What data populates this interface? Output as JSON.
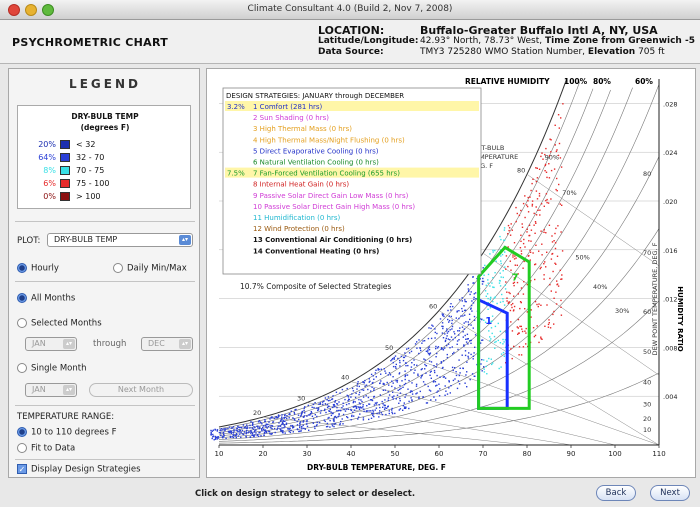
{
  "window": {
    "title": "Climate Consultant 4.0 (Build 2, Nov 7, 2008)"
  },
  "header": {
    "app_title": "PSYCHROMETRIC CHART",
    "location_label": "LOCATION:",
    "location_value": "Buffalo-Greater Buffalo Intl A, NY, USA",
    "latlon_label": "Latitude/Longitude:",
    "latlon_value_a": "42.93° North, 78.73° West,",
    "latlon_value_b": "Time Zone from Greenwich -5",
    "source_label": "Data Source:",
    "source_value_a": "TMY3    725280 WMO Station Number,",
    "source_value_b": "Elevation",
    "source_value_c": "705 ft"
  },
  "legend": {
    "title": "LEGEND",
    "heading1": "DRY-BULB TEMP",
    "heading2": "(degrees F)",
    "rows": [
      {
        "pct": "20%",
        "label": "< 32",
        "color": "#1c2fb0"
      },
      {
        "pct": "64%",
        "label": "32  -  70",
        "color": "#2a3fd6"
      },
      {
        "pct": "8%",
        "label": "70  -  75",
        "color": "#39e0e6"
      },
      {
        "pct": "6%",
        "label": "75  -  100",
        "color": "#e62a2a"
      },
      {
        "pct": "0%",
        "label": "> 100",
        "color": "#8b1010"
      }
    ]
  },
  "controls": {
    "plot_label": "PLOT:",
    "plot_value": "DRY-BULB TEMP",
    "hourly": "Hourly",
    "daily": "Daily Min/Max",
    "all_months": "All Months",
    "selected_months": "Selected Months",
    "month_from": "JAN",
    "through": "through",
    "month_to": "DEC",
    "single_month": "Single Month",
    "single_value": "JAN",
    "next_month": "Next Month",
    "temp_range_label": "TEMPERATURE RANGE:",
    "range_a": "10 to 110 degrees F",
    "range_b": "Fit to Data",
    "display_strategies": "Display Design Strategies"
  },
  "chart_labels": {
    "strategies_title": "DESIGN STRATEGIES:  JANUARY through DECEMBER",
    "rh_label": "RELATIVE HUMIDITY",
    "rh100": "100%",
    "rh80": "80%",
    "rh60": "60%",
    "composite": "10.7% Composite of Selected Strategies",
    "wetbulb1": "WET-BULB",
    "wetbulb2": "TEMPERATURE",
    "wetbulb3": "DEG. F",
    "xlabel": "DRY-BULB TEMPERATURE, DEG. F",
    "dewlabel": "DEW POINT TEMPERATURE, DEG. F",
    "ylabel": "HUMIDITY RATIO",
    "zone1": "1",
    "zone7": "7",
    "rh_curve_labels": [
      "90%",
      "70%",
      "50%",
      "40%",
      "30%"
    ]
  },
  "strategies": [
    {
      "pct": "3.2%",
      "text": "1 Comfort (281 hrs)",
      "color": "#2231c8",
      "highlight": true
    },
    {
      "pct": "",
      "text": "2 Sun Shading (0 hrs)",
      "color": "#d03cd6",
      "highlight": false
    },
    {
      "pct": "",
      "text": "3 High Thermal Mass (0 hrs)",
      "color": "#e4a020",
      "highlight": false
    },
    {
      "pct": "",
      "text": "4 High Thermal Mass/Night Flushing (0 hrs)",
      "color": "#e4a020",
      "highlight": false
    },
    {
      "pct": "",
      "text": "5 Direct Evaporative Cooling (0 hrs)",
      "color": "#2231c8",
      "highlight": false
    },
    {
      "pct": "",
      "text": "6 Natural Ventilation Cooling (0 hrs)",
      "color": "#1a8a2a",
      "highlight": false
    },
    {
      "pct": "7.5%",
      "text": "7 Fan-Forced Ventilation Cooling (655 hrs)",
      "color": "#1a9a2a",
      "highlight": true
    },
    {
      "pct": "",
      "text": "8 Internal Heat Gain (0 hrs)",
      "color": "#d02020",
      "highlight": false
    },
    {
      "pct": "",
      "text": "9 Passive Solar Direct Gain Low Mass (0 hrs)",
      "color": "#d03cd6",
      "highlight": false
    },
    {
      "pct": "",
      "text": "10 Passive Solar Direct Gain High Mass (0 hrs)",
      "color": "#d03cd6",
      "highlight": false
    },
    {
      "pct": "",
      "text": "11 Humidification (0 hrs)",
      "color": "#20b8d0",
      "highlight": false
    },
    {
      "pct": "",
      "text": "12 Wind Protection (0 hrs)",
      "color": "#9a5a10",
      "highlight": false
    },
    {
      "pct": "",
      "text": "13 Conventional Air Conditioning (0 hrs)",
      "color": "#111111",
      "highlight": false
    },
    {
      "pct": "",
      "text": "14 Conventional Heating (0 hrs)",
      "color": "#111111",
      "highlight": false
    }
  ],
  "chart_data": {
    "type": "scatter",
    "title": "PSYCHROMETRIC CHART",
    "xlabel": "DRY-BULB TEMPERATURE, DEG. F",
    "ylabel": "HUMIDITY RATIO",
    "xlim": [
      10,
      110
    ],
    "ylim": [
      0,
      0.03
    ],
    "x_ticks": [
      "10",
      "20",
      "30",
      "40",
      "50",
      "60",
      "70",
      "80",
      "90",
      "100",
      "110"
    ],
    "y_ticks": [
      ".028",
      ".024",
      ".020",
      ".016",
      ".012",
      ".008",
      ".004"
    ],
    "dewpoint_ticks": [
      "80",
      "70",
      "60",
      "50",
      "40",
      "30",
      "20",
      "10"
    ],
    "wetbulb_curve_labels": [
      "20",
      "30",
      "40",
      "50",
      "60",
      "70",
      "80"
    ],
    "rh_curves_percent": [
      100,
      90,
      80,
      70,
      60,
      50,
      40,
      30,
      20,
      10
    ],
    "series": [
      {
        "name": "70  -  75",
        "color": "#39e0e6"
      },
      {
        "name": "75  -  100",
        "color": "#e62a2a"
      },
      {
        "name": "32  -  70",
        "color": "#2a3fd6"
      }
    ],
    "zones": [
      {
        "name": "1 Comfort (281 hrs)",
        "color": "#1830ff",
        "polygon_db_w": [
          [
            69,
            0.003
          ],
          [
            75.5,
            0.003
          ],
          [
            75.5,
            0.0108
          ],
          [
            69,
            0.0119
          ]
        ]
      },
      {
        "name": "7 Fan-Forced Ventilation Cooling (655 hrs)",
        "color": "#22cc22",
        "polygon_db_w": [
          [
            69,
            0.003
          ],
          [
            80.5,
            0.003
          ],
          [
            80.5,
            0.015
          ],
          [
            75,
            0.0162
          ],
          [
            69,
            0.0138
          ]
        ]
      }
    ]
  },
  "footer": {
    "status": "Click on design strategy to select or deselect.",
    "back": "Back",
    "next": "Next"
  }
}
